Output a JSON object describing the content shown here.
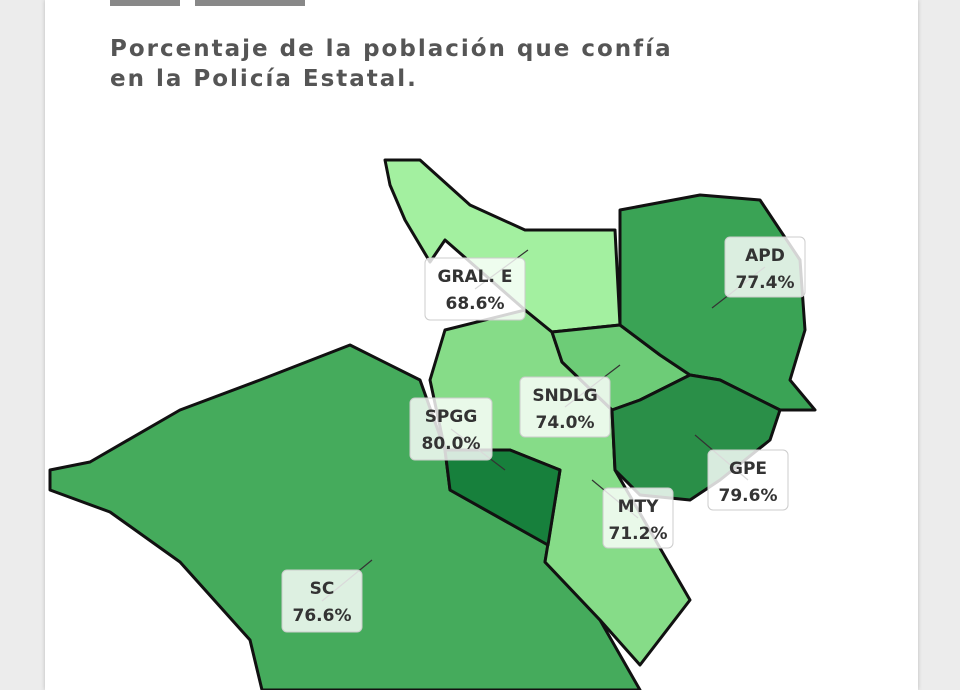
{
  "header": {
    "subtitle_lines": [
      "Porcentaje de la población que confía",
      "en la Policía Estatal."
    ]
  },
  "regions": [
    {
      "name": "GRAL. E",
      "value": "68.6%"
    },
    {
      "name": "APD",
      "value": "77.4%"
    },
    {
      "name": "SNDLG",
      "value": "74.0%"
    },
    {
      "name": "SPGG",
      "value": "80.0%"
    },
    {
      "name": "GPE",
      "value": "79.6%"
    },
    {
      "name": "MTY",
      "value": "71.2%"
    },
    {
      "name": "SC",
      "value": "76.6%"
    }
  ]
}
